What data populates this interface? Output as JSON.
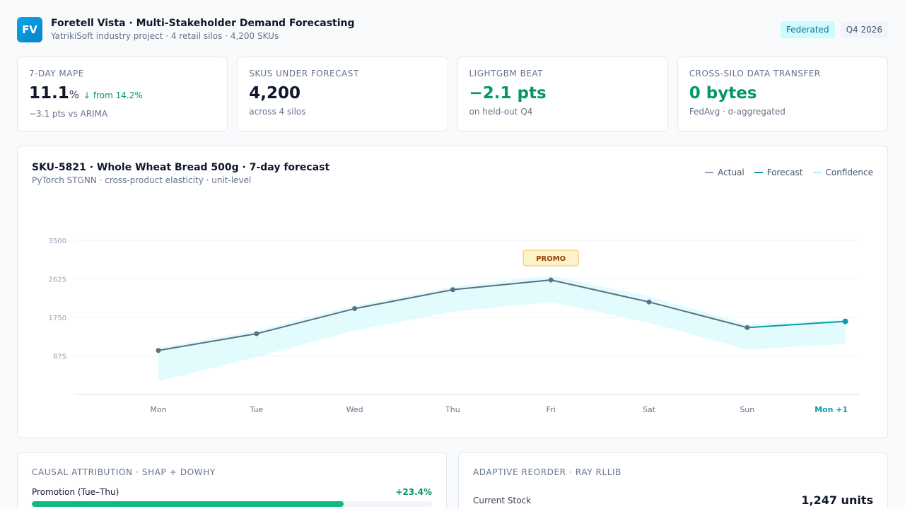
{
  "header": {
    "logo": "FV",
    "title": "Foretell Vista · Multi-Stakeholder Demand Forecasting",
    "subtitle": "YatrikiSoft industry project · 4 retail silos · 4,200 SKUs",
    "badges": [
      "Federated",
      "Q4 2026"
    ]
  },
  "kpis": [
    {
      "label": "7-Day MAPE",
      "value": "11.1",
      "unit": "%",
      "delta": "↓ from 14.2%",
      "sub": "−3.1 pts vs ARIMA"
    },
    {
      "label": "SKUs Under Forecast",
      "value": "4,200",
      "sub": "across 4 silos"
    },
    {
      "label": "LightGBM Beat",
      "value": "−2.1 pts",
      "sub": "on held-out Q4"
    },
    {
      "label": "Cross-Silo Data Transfer",
      "value": "0 bytes",
      "sub": "FedAvg · σ-aggregated"
    }
  ],
  "chart": {
    "title": "SKU-5821 · Whole Wheat Bread 500g · 7-day forecast",
    "subtitle": "PyTorch STGNN · cross-product elasticity · unit-level",
    "legend": [
      "Actual",
      "Forecast",
      "Confidence"
    ],
    "annotation": "PROMO",
    "colors": {
      "actual": "#5b7083",
      "forecast": "#0e9aa7",
      "confidence": "#cffafe",
      "promo_bg": "#fef3c7",
      "promo_border": "#f0c060",
      "promo_text": "#92400e"
    }
  },
  "chart_data": {
    "type": "line",
    "categories": [
      "Mon",
      "Tue",
      "Wed",
      "Thu",
      "Fri",
      "Sat",
      "Sun",
      "Mon +1"
    ],
    "yticks": [
      875,
      1750,
      2625,
      3500
    ],
    "ylim": [
      0,
      3500
    ],
    "series": [
      {
        "name": "Actual",
        "values": [
          1000,
          1380,
          1950,
          2380,
          2600,
          2100,
          1520,
          null
        ]
      },
      {
        "name": "Forecast",
        "values": [
          null,
          null,
          null,
          null,
          null,
          null,
          1520,
          1660
        ]
      },
      {
        "name": "Confidence",
        "upper": [
          1070,
          1450,
          2020,
          2450,
          2700,
          2230,
          1600,
          1700
        ],
        "lower": [
          300,
          850,
          1450,
          1880,
          2100,
          1630,
          1020,
          1150
        ]
      }
    ],
    "annotations": [
      {
        "label": "PROMO",
        "x": "Fri"
      }
    ]
  },
  "causal": {
    "title": "Causal Attribution · SHAP + DoWhy",
    "items": [
      {
        "label": "Promotion (Tue–Thu)",
        "value": "+23.4%",
        "fraction": 0.78
      }
    ]
  },
  "reorder": {
    "title": "Adaptive Reorder · Ray RLlib",
    "stock_label": "Current Stock",
    "stock_value": "1,247 units"
  }
}
